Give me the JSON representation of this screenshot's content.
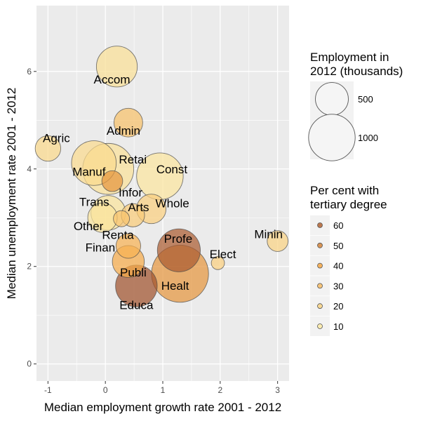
{
  "chart_data": {
    "type": "scatter",
    "xlabel": "Median employment growth rate 2001 - 2012",
    "ylabel": "Median unemployment rate 2001 - 2012",
    "xlim": [
      -1.2,
      3.2
    ],
    "ylim": [
      -0.35,
      7.35
    ],
    "x_ticks": [
      -1,
      0,
      1,
      2,
      3
    ],
    "y_ticks": [
      0,
      2,
      4,
      6
    ],
    "grid": true,
    "points": [
      {
        "label": "Agric",
        "x": -1.0,
        "y": 4.42,
        "employment": 300,
        "tertiary": 18
      },
      {
        "label": "Accom",
        "x": 0.2,
        "y": 6.1,
        "employment": 770,
        "tertiary": 15
      },
      {
        "label": "Admin",
        "x": 0.4,
        "y": 4.95,
        "employment": 380,
        "tertiary": 28
      },
      {
        "label": "Manuf",
        "x": -0.2,
        "y": 4.12,
        "employment": 920,
        "tertiary": 17
      },
      {
        "label": "Retai",
        "x": 0.05,
        "y": 4.0,
        "employment": 1200,
        "tertiary": 14
      },
      {
        "label": "Const",
        "x": 0.95,
        "y": 3.85,
        "employment": 1000,
        "tertiary": 12
      },
      {
        "label": "Infor",
        "x": 0.12,
        "y": 3.75,
        "employment": 200,
        "tertiary": 45
      },
      {
        "label": "Whole",
        "x": 0.8,
        "y": 3.18,
        "employment": 400,
        "tertiary": 22
      },
      {
        "label": "Trans",
        "x": 0.05,
        "y": 3.1,
        "employment": 550,
        "tertiary": 13
      },
      {
        "label": "Arts",
        "x": 0.48,
        "y": 3.05,
        "employment": 250,
        "tertiary": 24
      },
      {
        "label": "Other",
        "x": -0.05,
        "y": 3.0,
        "employment": 400,
        "tertiary": 13
      },
      {
        "label": "Renta",
        "x": 0.28,
        "y": 2.98,
        "employment": 120,
        "tertiary": 27
      },
      {
        "label": "Profe",
        "x": 1.28,
        "y": 2.33,
        "employment": 850,
        "tertiary": 62
      },
      {
        "label": "Minin",
        "x": 3.0,
        "y": 2.52,
        "employment": 200,
        "tertiary": 20
      },
      {
        "label": "Finan",
        "x": 0.4,
        "y": 2.42,
        "employment": 280,
        "tertiary": 35
      },
      {
        "label": "Elect",
        "x": 1.96,
        "y": 2.07,
        "employment": 80,
        "tertiary": 22
      },
      {
        "label": "Publi",
        "x": 0.4,
        "y": 2.1,
        "employment": 470,
        "tertiary": 38
      },
      {
        "label": "Healt",
        "x": 1.3,
        "y": 1.85,
        "employment": 1500,
        "tertiary": 45
      },
      {
        "label": "Educa",
        "x": 0.54,
        "y": 1.6,
        "employment": 800,
        "tertiary": 65
      }
    ],
    "legend_size": {
      "title_lines": [
        "Employment in",
        "2012 (thousands)"
      ],
      "entries": [
        {
          "label": "500",
          "value": 500
        },
        {
          "label": "1000",
          "value": 1000
        }
      ]
    },
    "legend_color": {
      "title_lines": [
        "Per cent with",
        "tertiary degree"
      ],
      "entries": [
        {
          "label": "60",
          "value": 60
        },
        {
          "label": "50",
          "value": 50
        },
        {
          "label": "40",
          "value": 40
        },
        {
          "label": "30",
          "value": 30
        },
        {
          "label": "20",
          "value": 20
        },
        {
          "label": "10",
          "value": 10
        }
      ]
    },
    "colors": {
      "panel_bg": "#ebebeb",
      "grid_major": "#ffffff",
      "low": "#fbeaa5",
      "mid": "#f5a542",
      "high": "#a0522d",
      "outline": "#4d4d4d"
    }
  }
}
